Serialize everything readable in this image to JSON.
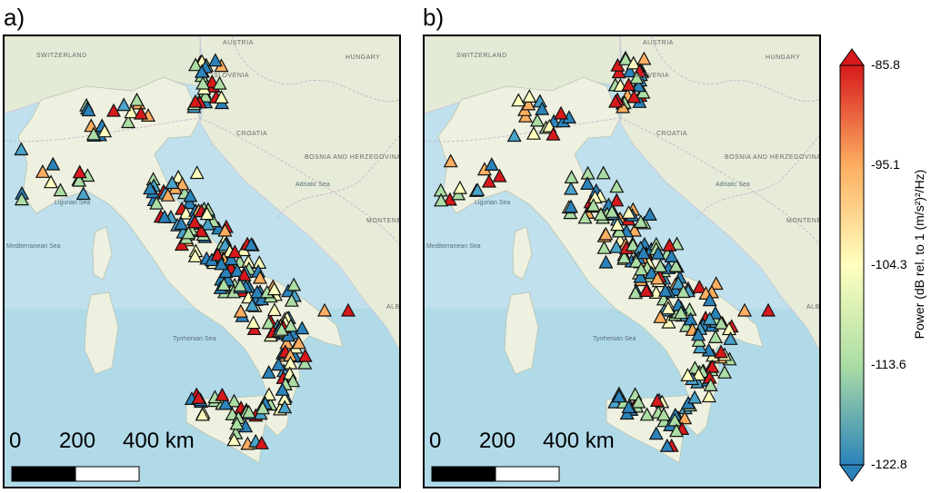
{
  "panels": [
    {
      "letter": "a)",
      "scale": {
        "zero": "0",
        "mid": "200",
        "end": "400 km"
      }
    },
    {
      "letter": "b)",
      "scale": {
        "zero": "0",
        "mid": "200",
        "end": "400 km"
      }
    }
  ],
  "map_labels": {
    "austria": "AUSTRIA",
    "hungary": "HUNGARY",
    "switzerland": "SWITZERLAND",
    "slovenia": "SLOVENIA",
    "croatia": "CROATIA",
    "bosnia": "BOSNIA AND HERZEGOVINA",
    "montenegro": "MONTENEGRO",
    "tyrrhenian": "Tyrrhenian Sea",
    "ligurian": "Ligurian Sea",
    "adriatic": "Adriatic Sea",
    "mediterranean": "Mediterranean Sea",
    "alb": "ALB"
  },
  "colorbar": {
    "ticks": [
      "-85.8",
      "-95.1",
      "-104.3",
      "-113.6",
      "-122.8"
    ],
    "label": "Power (dB rel. to 1 (m/s²)²/Hz)",
    "colors": [
      "#d7191c",
      "#fdae61",
      "#ffffbf",
      "#abdda4",
      "#2b83ba"
    ]
  }
}
